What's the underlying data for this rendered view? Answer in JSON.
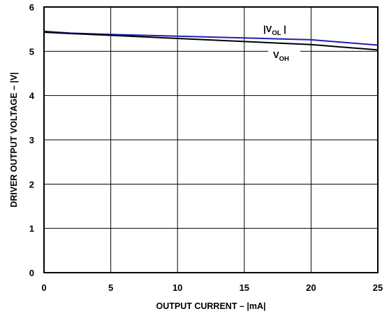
{
  "chart_data": {
    "type": "line",
    "xlabel": "OUTPUT CURRENT – |mA|",
    "ylabel": "DRIVER OUTPUT VOLTAGE – |V|",
    "xlim": [
      0,
      25
    ],
    "ylim": [
      0,
      6
    ],
    "xticks": [
      "0",
      "5",
      "10",
      "15",
      "20",
      "25"
    ],
    "yticks": [
      "0",
      "1",
      "2",
      "3",
      "4",
      "5",
      "6"
    ],
    "grid": true,
    "series": [
      {
        "name": "|VOL|",
        "label_main": "V",
        "label_sub": "OL",
        "label_prefix": "|",
        "label_suffix": " |",
        "color": "#1f1fb4",
        "x": [
          0,
          2,
          5,
          10,
          15,
          20,
          25
        ],
        "y": [
          5.45,
          5.41,
          5.38,
          5.34,
          5.3,
          5.26,
          5.14
        ]
      },
      {
        "name": "VOH",
        "label_main": "V",
        "label_sub": "OH",
        "label_prefix": "",
        "label_suffix": "",
        "color": "#000000",
        "x": [
          0,
          2,
          5,
          10,
          15,
          20,
          25
        ],
        "y": [
          5.43,
          5.4,
          5.36,
          5.29,
          5.22,
          5.15,
          5.03
        ]
      }
    ]
  }
}
